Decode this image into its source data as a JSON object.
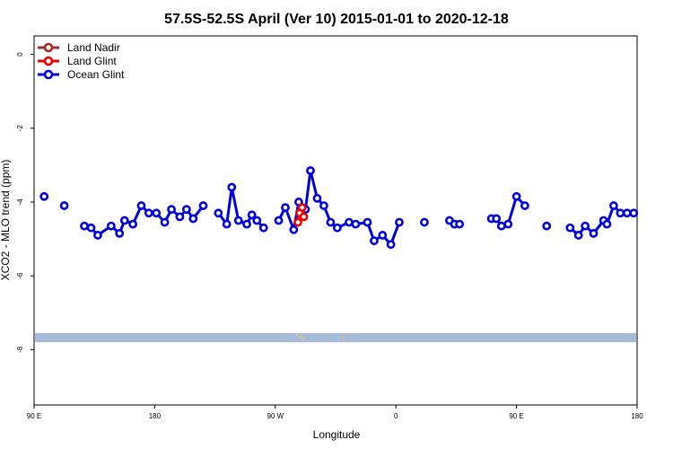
{
  "chart_data": {
    "type": "line",
    "title": "57.5S-52.5S April (Ver 10)   2015-01-01 to 2020-12-18",
    "xlabel": "Longitude",
    "ylabel": "XCO2 - MLO trend (ppm)",
    "xlim": [
      90,
      450
    ],
    "ylim": [
      -9.5,
      0.5
    ],
    "x_ticks": [
      {
        "value": 90,
        "label": "90 E"
      },
      {
        "value": 162,
        "label": "180"
      },
      {
        "value": 234,
        "label": "90 W"
      },
      {
        "value": 306,
        "label": "0"
      },
      {
        "value": 378,
        "label": "90 E"
      },
      {
        "value": 450,
        "label": "180"
      }
    ],
    "y_ticks": [
      {
        "value": 0,
        "label": "0"
      },
      {
        "value": -2,
        "label": "-2"
      },
      {
        "value": -4,
        "label": "-4"
      },
      {
        "value": -6,
        "label": "-6"
      },
      {
        "value": -8,
        "label": "-8"
      }
    ],
    "legend_position": "top-left",
    "map_band": {
      "y_top": -7.55,
      "y_bottom": -7.8,
      "color": "#a7bcd9",
      "land_color": "#f2d14b"
    },
    "series": [
      {
        "name": "Land Nadir",
        "color": "#a52a2a",
        "x": [],
        "y": []
      },
      {
        "name": "Land Glint",
        "color": "#ee0000",
        "x": [
          247.5,
          248.5,
          250.0,
          251.0
        ],
        "y": [
          -4.55,
          -4.3,
          -4.15,
          -4.4
        ]
      },
      {
        "name": "Ocean Glint",
        "color": "#0000dd",
        "x": [
          96.0,
          108.0,
          120.0,
          124.0,
          128.0,
          136.0,
          141.0,
          144.0,
          149.0,
          154.0,
          158.5,
          163.0,
          168.0,
          172.0,
          177.0,
          181.0,
          185.0,
          191.0,
          200.0,
          205.0,
          208.0,
          212.0,
          217.0,
          220.0,
          223.0,
          227.0,
          236.0,
          240.0,
          245.0,
          248.0,
          252.0,
          255.0,
          259.0,
          263.0,
          267.0,
          271.0,
          278.0,
          282.0,
          289.0,
          293.0,
          298.0,
          303.0,
          308.0,
          323.0,
          338.0,
          341.0,
          344.0,
          363.0,
          366.0,
          369.0,
          373.0,
          378.0,
          383.0,
          396.0,
          410.0,
          415.0,
          419.0,
          424.0,
          430.0,
          432.0,
          436.0,
          440.0,
          444.0,
          448.0
        ],
        "y": [
          -3.85,
          -4.1,
          -4.65,
          -4.7,
          -4.9,
          -4.65,
          -4.85,
          -4.5,
          -4.6,
          -4.1,
          -4.3,
          -4.3,
          -4.55,
          -4.2,
          -4.4,
          -4.2,
          -4.45,
          -4.1,
          -4.3,
          -4.6,
          -3.6,
          -4.5,
          -4.6,
          -4.35,
          -4.5,
          -4.7,
          -4.5,
          -4.15,
          -4.75,
          -4.0,
          -4.2,
          -3.15,
          -3.9,
          -4.1,
          -4.55,
          -4.7,
          -4.55,
          -4.6,
          -4.55,
          -5.05,
          -4.9,
          -5.15,
          -4.55,
          -4.55,
          -4.5,
          -4.6,
          -4.6,
          -4.45,
          -4.45,
          -4.65,
          -4.6,
          -3.85,
          -4.1,
          -4.65,
          -4.7,
          -4.9,
          -4.65,
          -4.85,
          -4.5,
          -4.6,
          -4.1,
          -4.3,
          -4.3,
          -4.3
        ]
      }
    ]
  }
}
